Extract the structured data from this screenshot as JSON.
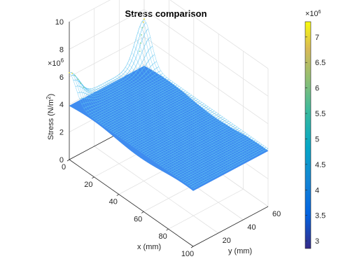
{
  "chart_data": {
    "type": "surface",
    "title": "Stress comparison",
    "xlabel": "x (mm)",
    "ylabel": "y (mm)",
    "zlabel": "Stress (N/m",
    "zlabel_sup": "2",
    "zlabel_close": ")",
    "xlim": [
      0,
      100
    ],
    "ylim": [
      0,
      60
    ],
    "zlim": [
      0,
      10
    ],
    "x_ticks": [
      "0",
      "20",
      "40",
      "60",
      "80",
      "100"
    ],
    "y_ticks": [
      "20",
      "40",
      "60"
    ],
    "z_ticks": [
      "0",
      "2",
      "4",
      "6",
      "8",
      "10"
    ],
    "z_exponent_base": "×10",
    "z_exponent_power": "6",
    "colorbar": {
      "colormap": "parula",
      "range": [
        2.85,
        7.3
      ],
      "ticks": [
        "3",
        "3.5",
        "4",
        "4.5",
        "5",
        "5.5",
        "6",
        "6.5",
        "7"
      ],
      "exponent_base": "×10",
      "exponent_power": "6"
    },
    "surfaces": [
      {
        "name": "",
        "level": 3.9,
        "style": "lower sheet",
        "color": "#3f8cf0"
      },
      {
        "name": "",
        "level": 4.2,
        "style": "mesh",
        "color": "#5fc4f0",
        "edge_peak": [
          {
            "x": 0,
            "y": 60,
            "z": 7.3
          },
          {
            "x": 0,
            "y": 0,
            "z": 6.3
          }
        ]
      }
    ],
    "grid": true,
    "colors": {
      "primary": "#5fc4f0",
      "secondary": "#3f8cf0",
      "peak": "#f5dc28"
    }
  }
}
